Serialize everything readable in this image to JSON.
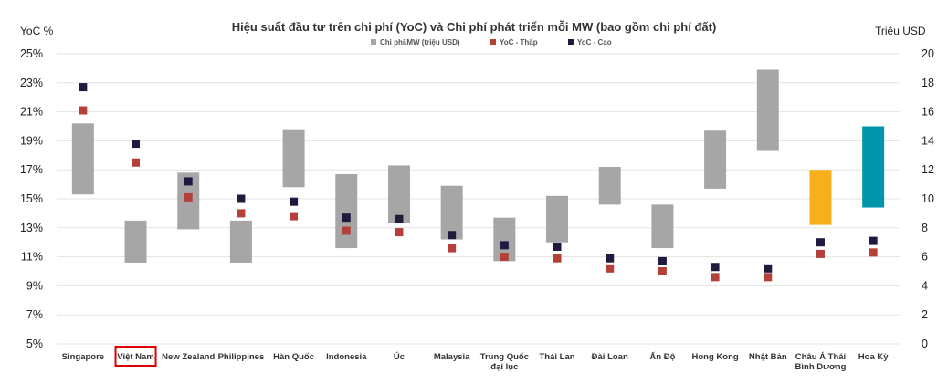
{
  "chart_data": {
    "type": "bar",
    "title": "Hiệu suất đầu tư trên chi phí (YoC) và Chi phí phát triển mỗi MW (bao gồm chi phí đất)",
    "left_axis_label": "YoC %",
    "right_axis_label": "Triệu USD",
    "left_ticks": [
      "25%",
      "23%",
      "21%",
      "19%",
      "17%",
      "15%",
      "13%",
      "11%",
      "9%",
      "7%",
      "5%"
    ],
    "right_ticks": [
      "20",
      "18",
      "16",
      "14",
      "12",
      "10",
      "8",
      "6",
      "4",
      "2",
      "0"
    ],
    "ylim_left": [
      5,
      25
    ],
    "ylim_right": [
      0,
      20
    ],
    "legend": [
      {
        "label": "Chi phí/MW (triệu USD)",
        "color": "#a6a6a6"
      },
      {
        "label": "YoC - Thấp",
        "color": "#b5403a"
      },
      {
        "label": "YoC - Cao",
        "color": "#1e1a40"
      }
    ],
    "categories": [
      {
        "name": "Singapore",
        "cost_range": [
          10.3,
          15.2
        ],
        "yoc_low": 21.1,
        "yoc_high": 22.7,
        "color": "#a6a6a6"
      },
      {
        "name": "Việt Nam",
        "cost_range": [
          5.6,
          8.5
        ],
        "yoc_low": 17.5,
        "yoc_high": 18.8,
        "color": "#a6a6a6",
        "highlighted": true
      },
      {
        "name": "New Zealand",
        "cost_range": [
          7.9,
          11.8
        ],
        "yoc_low": 15.1,
        "yoc_high": 16.2,
        "color": "#a6a6a6"
      },
      {
        "name": "Philippines",
        "cost_range": [
          5.6,
          8.5
        ],
        "yoc_low": 14.0,
        "yoc_high": 15.0,
        "color": "#a6a6a6"
      },
      {
        "name": "Hàn Quốc",
        "cost_range": [
          10.8,
          14.8
        ],
        "yoc_low": 13.8,
        "yoc_high": 14.8,
        "color": "#a6a6a6"
      },
      {
        "name": "Indonesia",
        "cost_range": [
          6.6,
          11.7
        ],
        "yoc_low": 12.8,
        "yoc_high": 13.7,
        "color": "#a6a6a6"
      },
      {
        "name": "Úc",
        "cost_range": [
          8.3,
          12.3
        ],
        "yoc_low": 12.7,
        "yoc_high": 13.6,
        "color": "#a6a6a6"
      },
      {
        "name": "Malaysia",
        "cost_range": [
          7.2,
          10.9
        ],
        "yoc_low": 11.6,
        "yoc_high": 12.5,
        "color": "#a6a6a6"
      },
      {
        "name": "Trung Quốc đại lục",
        "cost_range": [
          5.7,
          8.7
        ],
        "yoc_low": 11.0,
        "yoc_high": 11.8,
        "color": "#a6a6a6"
      },
      {
        "name": "Thái Lan",
        "cost_range": [
          7.0,
          10.2
        ],
        "yoc_low": 10.9,
        "yoc_high": 11.7,
        "color": "#a6a6a6"
      },
      {
        "name": "Đài Loan",
        "cost_range": [
          9.6,
          12.2
        ],
        "yoc_low": 10.2,
        "yoc_high": 10.9,
        "color": "#a6a6a6"
      },
      {
        "name": "Ấn Độ",
        "cost_range": [
          6.6,
          9.6
        ],
        "yoc_low": 10.0,
        "yoc_high": 10.7,
        "color": "#a6a6a6"
      },
      {
        "name": "Hong Kong",
        "cost_range": [
          10.7,
          14.7
        ],
        "yoc_low": 9.6,
        "yoc_high": 10.3,
        "color": "#a6a6a6"
      },
      {
        "name": "Nhật Bản",
        "cost_range": [
          13.3,
          18.9
        ],
        "yoc_low": 9.6,
        "yoc_high": 10.2,
        "color": "#a6a6a6"
      },
      {
        "name": "Châu Á Thái Bình Dương",
        "cost_range": [
          8.2,
          12.0
        ],
        "yoc_low": 11.2,
        "yoc_high": 12.0,
        "color": "#f5b01c"
      },
      {
        "name": "Hoa Kỳ",
        "cost_range": [
          9.4,
          15.0
        ],
        "yoc_low": 11.3,
        "yoc_high": 12.1,
        "color": "#0095ab"
      }
    ]
  }
}
